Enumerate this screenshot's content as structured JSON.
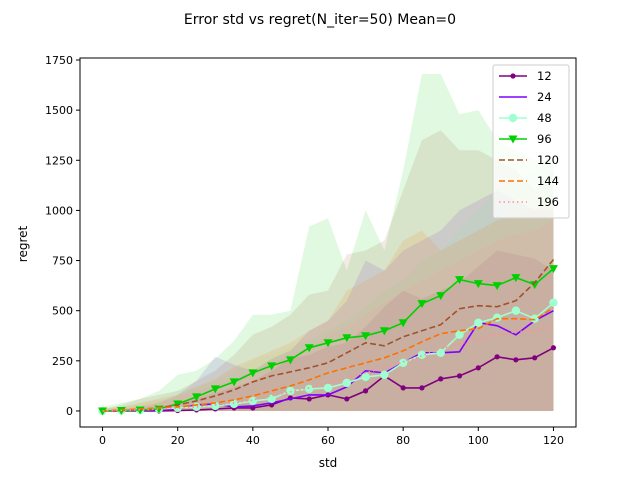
{
  "chart_data": {
    "type": "line",
    "title": "Error std vs regret(N_iter=50) Mean=0",
    "xlabel": "std",
    "ylabel": "regret",
    "xlim": [
      -6,
      126
    ],
    "ylim": [
      -80,
      1760
    ],
    "xticks": [
      0,
      20,
      40,
      60,
      80,
      100,
      120
    ],
    "yticks": [
      0,
      250,
      500,
      750,
      1000,
      1250,
      1500,
      1750
    ],
    "grid": false,
    "legend_position": "top-right",
    "x": [
      0,
      5,
      10,
      15,
      20,
      25,
      30,
      35,
      40,
      45,
      50,
      55,
      60,
      65,
      70,
      75,
      80,
      85,
      90,
      95,
      100,
      105,
      110,
      115,
      120
    ],
    "series": [
      {
        "name": "12",
        "color": "#800080",
        "style": "solid",
        "marker": "dot",
        "values": [
          0,
          0,
          0,
          0,
          2,
          5,
          10,
          15,
          15,
          30,
          65,
          60,
          80,
          60,
          100,
          175,
          115,
          115,
          160,
          175,
          215,
          270,
          255,
          265,
          315
        ],
        "band_lo": [
          0,
          0,
          0,
          0,
          0,
          0,
          0,
          0,
          0,
          0,
          0,
          0,
          0,
          0,
          0,
          0,
          0,
          0,
          0,
          0,
          0,
          0,
          0,
          0,
          0
        ],
        "band_hi": [
          5,
          5,
          10,
          20,
          40,
          60,
          90,
          120,
          150,
          200,
          260,
          280,
          320,
          340,
          420,
          520,
          600,
          560,
          600,
          640,
          720,
          800,
          780,
          760,
          700
        ]
      },
      {
        "name": "24",
        "color": "#7f00ff",
        "style": "solid",
        "marker": "none",
        "values": [
          0,
          0,
          2,
          5,
          10,
          30,
          35,
          20,
          25,
          40,
          60,
          80,
          80,
          120,
          200,
          190,
          240,
          290,
          290,
          295,
          440,
          425,
          380,
          450,
          500
        ],
        "band_lo": [
          0,
          0,
          0,
          0,
          0,
          0,
          0,
          0,
          0,
          0,
          0,
          0,
          0,
          0,
          0,
          0,
          0,
          0,
          0,
          0,
          0,
          0,
          0,
          0,
          0
        ],
        "band_hi": [
          5,
          10,
          20,
          40,
          80,
          150,
          270,
          230,
          200,
          260,
          300,
          400,
          450,
          550,
          750,
          700,
          800,
          850,
          900,
          1000,
          1050,
          1100,
          1050,
          1000,
          1000
        ]
      },
      {
        "name": "48",
        "color": "#a0ffd0",
        "style": "solid",
        "marker": "circle",
        "values": [
          0,
          2,
          5,
          10,
          15,
          20,
          25,
          35,
          50,
          60,
          100,
          110,
          115,
          140,
          170,
          180,
          240,
          280,
          290,
          380,
          440,
          465,
          500,
          460,
          540
        ],
        "band_lo": [
          0,
          0,
          0,
          0,
          0,
          0,
          0,
          0,
          0,
          0,
          0,
          0,
          0,
          0,
          0,
          0,
          0,
          0,
          0,
          0,
          0,
          0,
          0,
          0,
          0
        ],
        "band_hi": [
          10,
          20,
          40,
          60,
          100,
          120,
          150,
          200,
          250,
          280,
          320,
          350,
          400,
          450,
          520,
          600,
          650,
          750,
          800,
          900,
          1000,
          1100,
          1150,
          1200,
          1250
        ]
      },
      {
        "name": "96",
        "color": "#00d000",
        "style": "solid",
        "marker": "triangle-down",
        "values": [
          0,
          2,
          5,
          10,
          35,
          70,
          110,
          145,
          190,
          225,
          255,
          315,
          340,
          365,
          375,
          400,
          440,
          535,
          575,
          655,
          635,
          625,
          665,
          630,
          710
        ],
        "band_lo": [
          0,
          0,
          0,
          0,
          0,
          0,
          0,
          0,
          0,
          0,
          0,
          0,
          0,
          0,
          0,
          0,
          0,
          0,
          0,
          0,
          0,
          0,
          0,
          0,
          0
        ],
        "band_hi": [
          20,
          40,
          60,
          100,
          180,
          200,
          260,
          350,
          480,
          480,
          500,
          920,
          960,
          700,
          1000,
          800,
          1200,
          1680,
          1680,
          1480,
          1500,
          1350,
          1300,
          1250,
          1250
        ]
      },
      {
        "name": "120",
        "color": "#a0522d",
        "style": "dashed",
        "marker": "none",
        "values": [
          0,
          3,
          8,
          15,
          30,
          50,
          75,
          105,
          145,
          175,
          195,
          215,
          240,
          290,
          340,
          325,
          370,
          400,
          430,
          510,
          525,
          520,
          550,
          640,
          755
        ],
        "band_lo": [
          0,
          0,
          0,
          0,
          0,
          0,
          0,
          0,
          0,
          0,
          0,
          0,
          0,
          0,
          0,
          0,
          0,
          0,
          0,
          0,
          0,
          0,
          0,
          0,
          0
        ],
        "band_hi": [
          10,
          30,
          60,
          80,
          100,
          150,
          200,
          280,
          380,
          420,
          480,
          580,
          600,
          780,
          800,
          850,
          1100,
          1350,
          1400,
          1300,
          1300,
          1250,
          1200,
          1100,
          1200
        ]
      },
      {
        "name": "144",
        "color": "#ff7000",
        "style": "dashed",
        "marker": "none",
        "values": [
          0,
          5,
          10,
          15,
          20,
          30,
          40,
          55,
          75,
          100,
          125,
          155,
          190,
          215,
          240,
          265,
          300,
          345,
          385,
          400,
          410,
          460,
          460,
          455,
          515
        ],
        "band_lo": [
          0,
          0,
          0,
          0,
          0,
          0,
          0,
          0,
          0,
          0,
          0,
          0,
          0,
          0,
          0,
          0,
          0,
          0,
          0,
          0,
          0,
          0,
          0,
          0,
          0
        ],
        "band_hi": [
          10,
          20,
          40,
          60,
          80,
          120,
          160,
          220,
          260,
          300,
          340,
          400,
          450,
          600,
          650,
          700,
          850,
          900,
          800,
          850,
          900,
          950,
          980,
          1000,
          1050
        ]
      },
      {
        "name": "196",
        "color": "#ff9090",
        "style": "dotted",
        "marker": "none",
        "values": [
          0,
          3,
          6,
          10,
          14,
          20,
          30,
          40,
          55,
          75,
          95,
          115,
          140,
          165,
          190,
          215,
          245,
          275,
          310,
          335,
          360,
          380,
          395,
          400,
          420
        ],
        "band_lo": [
          0,
          0,
          0,
          0,
          0,
          0,
          0,
          0,
          0,
          0,
          0,
          0,
          0,
          0,
          0,
          0,
          0,
          0,
          0,
          0,
          0,
          0,
          0,
          0,
          0
        ],
        "band_hi": [
          10,
          20,
          30,
          50,
          70,
          100,
          130,
          160,
          200,
          240,
          280,
          320,
          380,
          420,
          480,
          540,
          600,
          650,
          700,
          750,
          800,
          850,
          880,
          900,
          950
        ]
      }
    ]
  }
}
